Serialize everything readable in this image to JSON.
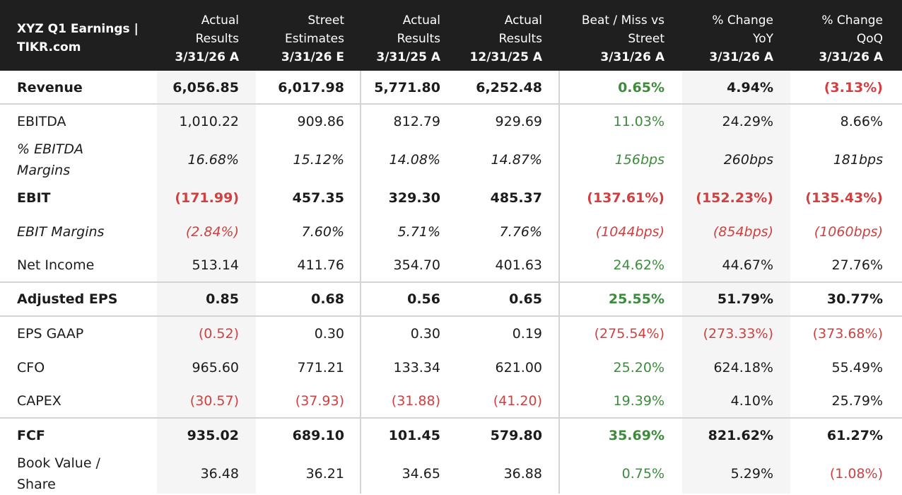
{
  "title_line1": "XYZ Q1 Earnings |",
  "title_line2": "TIKR.com",
  "columns": [
    {
      "l1": "Actual",
      "l2": "Results",
      "date": "3/31/26 A"
    },
    {
      "l1": "Street",
      "l2": "Estimates",
      "date": "3/31/26 E"
    },
    {
      "l1": "Actual",
      "l2": "Results",
      "date": "3/31/25 A"
    },
    {
      "l1": "Actual",
      "l2": "Results",
      "date": "12/31/25 A"
    },
    {
      "l1": "Beat / Miss vs",
      "l2": "Street",
      "date": "3/31/26 A"
    },
    {
      "l1": "% Change",
      "l2": "YoY",
      "date": "3/31/26 A"
    },
    {
      "l1": "% Change",
      "l2": "QoQ",
      "date": "3/31/26 A"
    }
  ],
  "rows": [
    {
      "label": "Revenue",
      "style": "bold",
      "values": [
        "6,056.85",
        "6,017.98",
        "5,771.80",
        "6,252.48",
        "0.65%",
        "4.94%",
        "(3.13%)"
      ],
      "tones": [
        "",
        "",
        "",
        "",
        "pos",
        "",
        "neg"
      ]
    },
    {
      "label": "EBITDA",
      "style": "normal",
      "values": [
        "1,010.22",
        "909.86",
        "812.79",
        "929.69",
        "11.03%",
        "24.29%",
        "8.66%"
      ],
      "tones": [
        "",
        "",
        "",
        "",
        "pos",
        "",
        ""
      ]
    },
    {
      "label_l1": "% EBITDA",
      "label_l2": "Margins",
      "style": "ital",
      "values": [
        "16.68%",
        "15.12%",
        "14.08%",
        "14.87%",
        "156bps",
        "260bps",
        "181bps"
      ],
      "tones": [
        "",
        "",
        "",
        "",
        "pos",
        "",
        ""
      ]
    },
    {
      "label": "EBIT",
      "style": "bold",
      "values": [
        "(171.99)",
        "457.35",
        "329.30",
        "485.37",
        "(137.61%)",
        "(152.23%)",
        "(135.43%)"
      ],
      "tones": [
        "neg",
        "",
        "",
        "",
        "neg",
        "neg",
        "neg"
      ]
    },
    {
      "label": "EBIT Margins",
      "style": "ital",
      "values": [
        "(2.84%)",
        "7.60%",
        "5.71%",
        "7.76%",
        "(1044bps)",
        "(854bps)",
        "(1060bps)"
      ],
      "tones": [
        "neg",
        "",
        "",
        "",
        "neg",
        "neg",
        "neg"
      ]
    },
    {
      "label": "Net Income",
      "style": "normal",
      "values": [
        "513.14",
        "411.76",
        "354.70",
        "401.63",
        "24.62%",
        "44.67%",
        "27.76%"
      ],
      "tones": [
        "",
        "",
        "",
        "",
        "pos",
        "",
        ""
      ]
    },
    {
      "label": "Adjusted EPS",
      "style": "bold",
      "values": [
        "0.85",
        "0.68",
        "0.56",
        "0.65",
        "25.55%",
        "51.79%",
        "30.77%"
      ],
      "tones": [
        "",
        "",
        "",
        "",
        "pos",
        "",
        ""
      ]
    },
    {
      "label": "EPS GAAP",
      "style": "normal",
      "values": [
        "(0.52)",
        "0.30",
        "0.30",
        "0.19",
        "(275.54%)",
        "(273.33%)",
        "(373.68%)"
      ],
      "tones": [
        "neg",
        "",
        "",
        "",
        "neg",
        "neg",
        "neg"
      ]
    },
    {
      "label": "CFO",
      "style": "normal",
      "values": [
        "965.60",
        "771.21",
        "133.34",
        "621.00",
        "25.20%",
        "624.18%",
        "55.49%"
      ],
      "tones": [
        "",
        "",
        "",
        "",
        "pos",
        "",
        ""
      ]
    },
    {
      "label": "CAPEX",
      "style": "normal",
      "values": [
        "(30.57)",
        "(37.93)",
        "(31.88)",
        "(41.20)",
        "19.39%",
        "4.10%",
        "25.79%"
      ],
      "tones": [
        "neg",
        "neg",
        "neg",
        "neg",
        "pos",
        "",
        ""
      ]
    },
    {
      "label": "FCF",
      "style": "bold",
      "values": [
        "935.02",
        "689.10",
        "101.45",
        "579.80",
        "35.69%",
        "821.62%",
        "61.27%"
      ],
      "tones": [
        "",
        "",
        "",
        "",
        "pos",
        "",
        ""
      ]
    },
    {
      "label_l1": "Book Value /",
      "label_l2": "Share",
      "style": "normal",
      "values": [
        "36.48",
        "36.21",
        "34.65",
        "36.88",
        "0.75%",
        "5.29%",
        "(1.08%)"
      ],
      "tones": [
        "",
        "",
        "",
        "",
        "pos",
        "",
        "neg"
      ]
    }
  ]
}
